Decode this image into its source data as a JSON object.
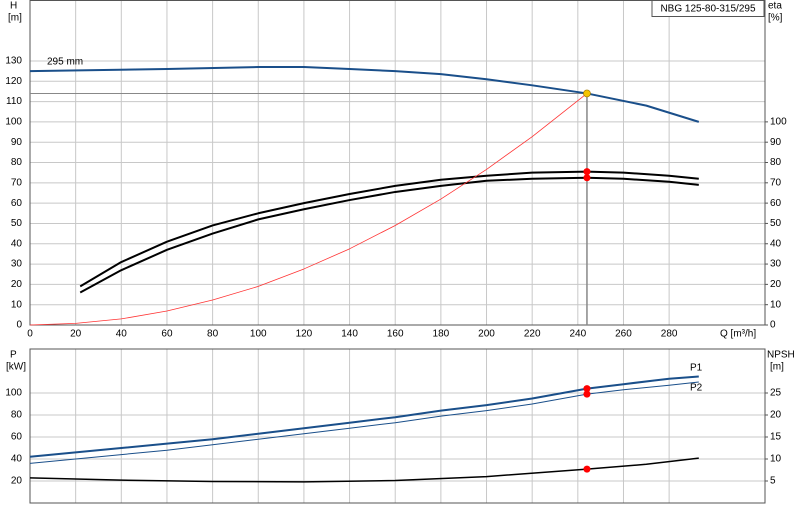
{
  "chart_data": [
    {
      "type": "line",
      "title": "NBG 125-80-315/295",
      "annotation": "295 mm",
      "ylabel": "H",
      "yunit": "[m]",
      "y2label": "eta",
      "y2unit": "[%]",
      "xlabel": "Q [m³/h]",
      "xlim": [
        0,
        322
      ],
      "xticks": [
        0,
        20,
        40,
        60,
        80,
        100,
        120,
        140,
        160,
        180,
        200,
        220,
        240,
        260,
        280
      ],
      "ylim": [
        0,
        160
      ],
      "yticks": [
        0,
        10,
        20,
        30,
        40,
        50,
        60,
        70,
        80,
        90,
        100,
        110,
        120,
        130
      ],
      "y2lim": [
        0,
        160
      ],
      "y2ticks": [
        0,
        10,
        20,
        30,
        40,
        50,
        60,
        70,
        80,
        90,
        100
      ],
      "grid": true,
      "series": [
        {
          "color": "#1a4f8a",
          "width": 2,
          "x": [
            0,
            60,
            100,
            120,
            140,
            160,
            180,
            200,
            220,
            244,
            270,
            293
          ],
          "values": [
            125,
            126,
            127,
            127,
            126,
            125,
            123.5,
            121,
            118,
            114,
            108,
            100
          ]
        },
        {
          "color": "#000000",
          "width": 2,
          "axis": "y2",
          "x": [
            22,
            40,
            60,
            80,
            100,
            120,
            140,
            160,
            180,
            200,
            220,
            244,
            260,
            280,
            293
          ],
          "values": [
            19,
            31,
            41,
            49,
            55,
            60,
            64.5,
            68.5,
            71.5,
            73.5,
            75,
            75.5,
            75,
            73.5,
            72
          ]
        },
        {
          "color": "#000000",
          "width": 2,
          "axis": "y2",
          "x": [
            22,
            40,
            60,
            80,
            100,
            120,
            140,
            160,
            180,
            200,
            220,
            244,
            260,
            280,
            293
          ],
          "values": [
            16,
            27,
            37,
            45,
            52,
            57,
            61.5,
            65.5,
            68.5,
            71,
            72,
            72.5,
            72,
            70.5,
            69
          ]
        },
        {
          "color": "#ff3333",
          "width": 0.8,
          "x": [
            0,
            20,
            40,
            60,
            80,
            100,
            120,
            140,
            160,
            180,
            200,
            220,
            244
          ],
          "values": [
            0,
            0.8,
            3,
            6.9,
            12.3,
            19,
            27.6,
            37.5,
            49,
            62,
            76.6,
            92.7,
            114
          ]
        }
      ],
      "markers": [
        {
          "x": 244,
          "y": 114,
          "color": "#f5c400"
        },
        {
          "x": 244,
          "y": 75.5,
          "color": "#ff0000",
          "axis": "y2"
        },
        {
          "x": 244,
          "y": 72.5,
          "color": "#ff0000",
          "axis": "y2"
        }
      ]
    },
    {
      "type": "line",
      "ylabel": "P",
      "yunit": "[kW]",
      "y2label": "NPSH",
      "y2unit": "[m]",
      "xlim": [
        0,
        322
      ],
      "ylim": [
        0,
        140
      ],
      "yticks": [
        20,
        40,
        60,
        80,
        100
      ],
      "y2lim": [
        0,
        35
      ],
      "y2ticks": [
        5,
        10,
        15,
        20,
        25
      ],
      "grid": true,
      "series": [
        {
          "name": "P1",
          "color": "#1a4f8a",
          "width": 2,
          "x": [
            0,
            20,
            40,
            60,
            80,
            100,
            120,
            140,
            160,
            180,
            200,
            220,
            244,
            260,
            280,
            293
          ],
          "values": [
            42,
            46,
            50,
            54,
            58,
            63,
            68,
            73,
            78,
            84,
            89,
            95,
            104,
            108,
            113,
            115
          ]
        },
        {
          "name": "P2",
          "color": "#1a4f8a",
          "width": 1,
          "x": [
            0,
            20,
            40,
            60,
            80,
            100,
            120,
            140,
            160,
            180,
            200,
            220,
            244,
            260,
            280,
            293
          ],
          "values": [
            36,
            40,
            44,
            48,
            53,
            58,
            63,
            68,
            73,
            79,
            84,
            90,
            99,
            103,
            107,
            110
          ]
        },
        {
          "color": "#000000",
          "width": 1.5,
          "axis": "y2",
          "x": [
            0,
            40,
            80,
            120,
            160,
            200,
            244,
            270,
            293
          ],
          "values": [
            5.7,
            5.2,
            4.9,
            4.8,
            5.1,
            6,
            7.7,
            8.8,
            10.2
          ]
        }
      ],
      "markers": [
        {
          "x": 244,
          "y": 104,
          "color": "#ff0000"
        },
        {
          "x": 244,
          "y": 99,
          "color": "#ff0000"
        },
        {
          "x": 244,
          "y": 7.7,
          "color": "#ff0000",
          "axis": "y2"
        }
      ]
    }
  ]
}
